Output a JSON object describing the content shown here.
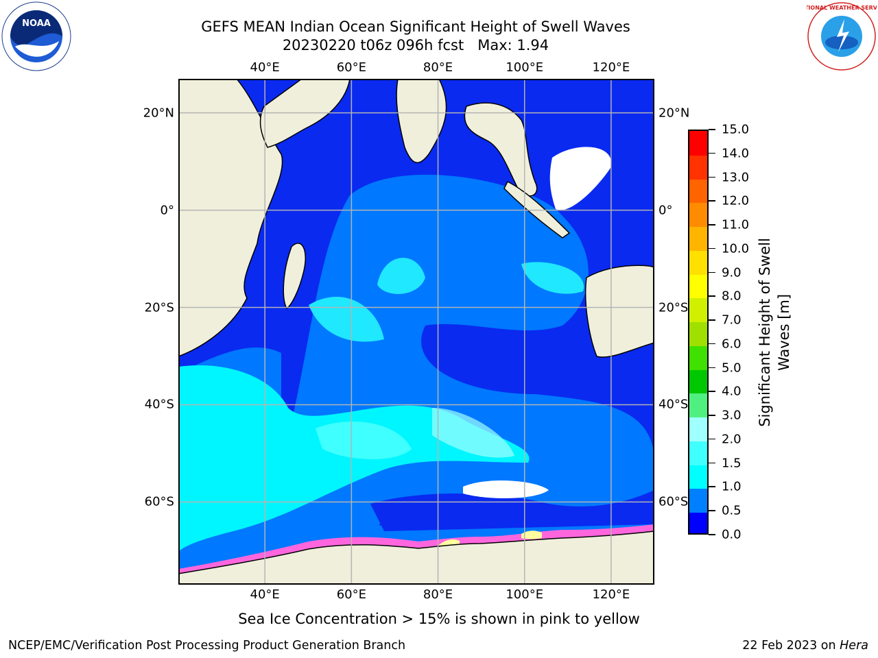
{
  "title": {
    "line1": "GEFS MEAN Indian Ocean Significant Height of Swell Waves",
    "line2": "20230220 t06z 096h fcst   Max: 1.94"
  },
  "logos": {
    "left": "NOAA",
    "left_icon": "noaa-logo",
    "right_icon": "nws-logo",
    "right_text": "NATIONAL WEATHER SERVICE"
  },
  "map": {
    "lon_range": [
      20,
      130
    ],
    "lat_range": [
      -77,
      27
    ],
    "lon_ticks": [
      {
        "value": 40,
        "label": "40°E"
      },
      {
        "value": 60,
        "label": "60°E"
      },
      {
        "value": 80,
        "label": "80°E"
      },
      {
        "value": 100,
        "label": "100°E"
      },
      {
        "value": 120,
        "label": "120°E"
      }
    ],
    "lat_ticks": [
      {
        "value": 20,
        "label": "20°N"
      },
      {
        "value": 0,
        "label": "0°"
      },
      {
        "value": -20,
        "label": "20°S"
      },
      {
        "value": -40,
        "label": "40°S"
      },
      {
        "value": -60,
        "label": "60°S"
      }
    ],
    "grid": true,
    "land_color": "#efefdc",
    "ocean_color": "#0a2af0"
  },
  "colorbar": {
    "label_line1": "Significant Height of Swell",
    "label_line2": "Waves [m]",
    "levels": [
      "0.0",
      "0.5",
      "1.0",
      "1.5",
      "2.0",
      "3.0",
      "4.0",
      "5.0",
      "6.0",
      "7.0",
      "8.0",
      "9.0",
      "10.0",
      "11.0",
      "12.0",
      "13.0",
      "14.0",
      "15.0"
    ],
    "colors": [
      "#0000ff",
      "#0080ff",
      "#00ffff",
      "#40ffff",
      "#a0ffff",
      "#50f080",
      "#00c800",
      "#40e000",
      "#a0e000",
      "#d0f000",
      "#ffff00",
      "#ffe000",
      "#ffb400",
      "#ff8c00",
      "#ff6400",
      "#ff3200",
      "#ff0000"
    ]
  },
  "note": "Sea Ice Concentration > 15% is shown in pink to yellow",
  "footer": {
    "left": "NCEP/EMC/Verification Post Processing Product Generation Branch",
    "right_prefix": "22 Feb 2023 on ",
    "right_italic": "Hera"
  }
}
